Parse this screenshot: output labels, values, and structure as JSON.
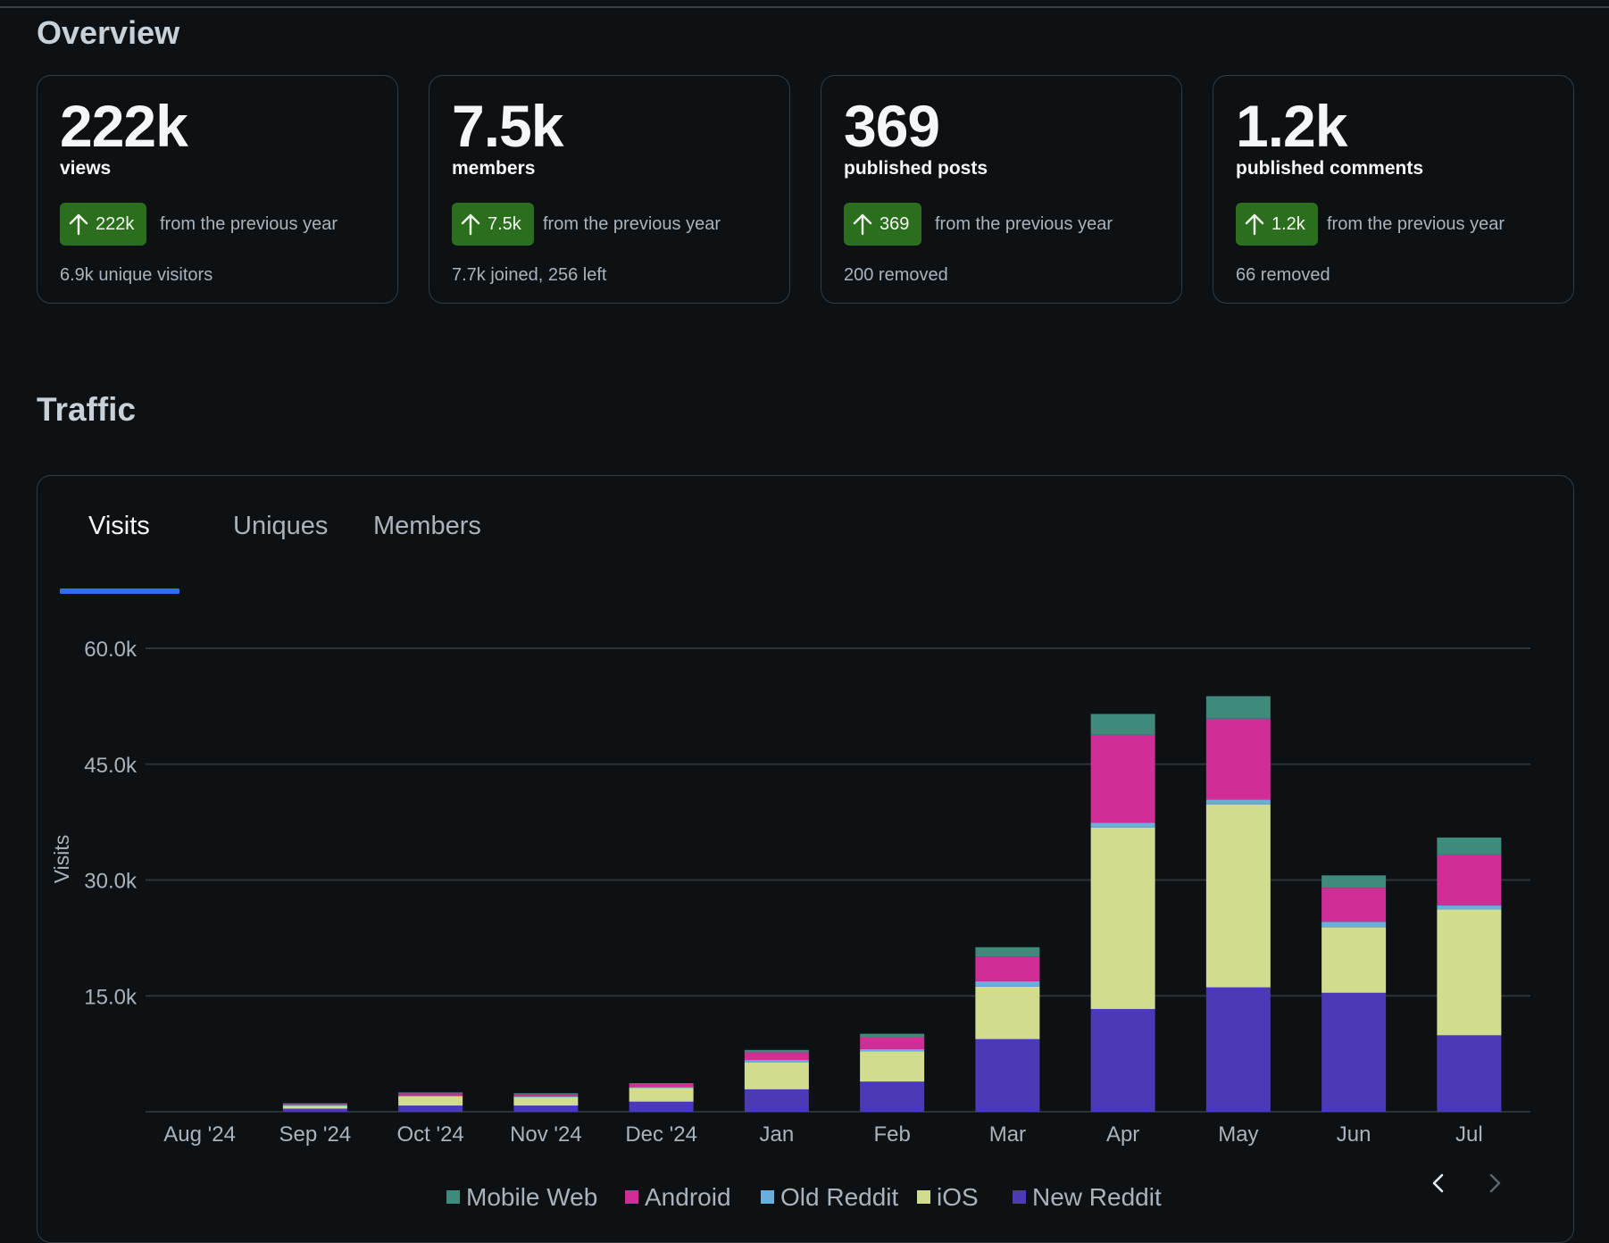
{
  "overview": {
    "title": "Overview",
    "cards": [
      {
        "value": "222k",
        "label": "views",
        "delta": "222k",
        "comparison": "from the previous year",
        "detail": "6.9k unique visitors"
      },
      {
        "value": "7.5k",
        "label": "members",
        "delta": "7.5k",
        "comparison": "from the previous year",
        "detail": "7.7k joined, 256 left"
      },
      {
        "value": "369",
        "label": "published posts",
        "delta": "369",
        "comparison": "from the previous year",
        "detail": "200 removed"
      },
      {
        "value": "1.2k",
        "label": "published comments",
        "delta": "1.2k",
        "comparison": "from the previous year",
        "detail": "66 removed"
      }
    ],
    "badge_icon": "arrow-up-icon",
    "badge_color": "#2b6e1e"
  },
  "traffic": {
    "title": "Traffic",
    "tabs": [
      "Visits",
      "Uniques",
      "Members"
    ],
    "active_tab": "Visits",
    "accent_color": "#2f6cf0",
    "pager": {
      "prev_icon": "chevron-left-icon",
      "next_icon": "chevron-right-icon"
    }
  },
  "chart_data": {
    "type": "bar",
    "stacked": true,
    "ylabel": "Visits",
    "ylim": [
      0,
      60000
    ],
    "yticks": [
      15000,
      30000,
      45000,
      60000
    ],
    "ytick_labels": [
      "15.0k",
      "30.0k",
      "45.0k",
      "60.0k"
    ],
    "categories": [
      "Aug '24",
      "Sep '24",
      "Oct '24",
      "Nov '24",
      "Dec '24",
      "Jan",
      "Feb",
      "Mar",
      "Apr",
      "May",
      "Jun",
      "Jul"
    ],
    "grid": true,
    "legend_position": "bottom-center",
    "series": [
      {
        "name": "New Reddit",
        "color": "#4a3ab5",
        "values": [
          0,
          400,
          800,
          800,
          1300,
          2900,
          3900,
          9400,
          13300,
          16100,
          15400,
          9900
        ]
      },
      {
        "name": "iOS",
        "color": "#d2dc8f",
        "values": [
          0,
          400,
          1200,
          1100,
          1800,
          3500,
          3900,
          6800,
          23500,
          23700,
          8500,
          16300
        ]
      },
      {
        "name": "Old Reddit",
        "color": "#6aaedc",
        "values": [
          0,
          60,
          100,
          100,
          100,
          300,
          300,
          700,
          600,
          600,
          700,
          500
        ]
      },
      {
        "name": "Android",
        "color": "#d02e96",
        "values": [
          0,
          200,
          300,
          300,
          400,
          1000,
          1500,
          3200,
          11400,
          10500,
          4400,
          6600
        ]
      },
      {
        "name": "Mobile Web",
        "color": "#3e8a7b",
        "values": [
          0,
          40,
          100,
          100,
          100,
          300,
          500,
          1200,
          2700,
          2900,
          1600,
          2200
        ]
      }
    ],
    "legend_order": [
      "Mobile Web",
      "Android",
      "Old Reddit",
      "iOS",
      "New Reddit"
    ]
  }
}
